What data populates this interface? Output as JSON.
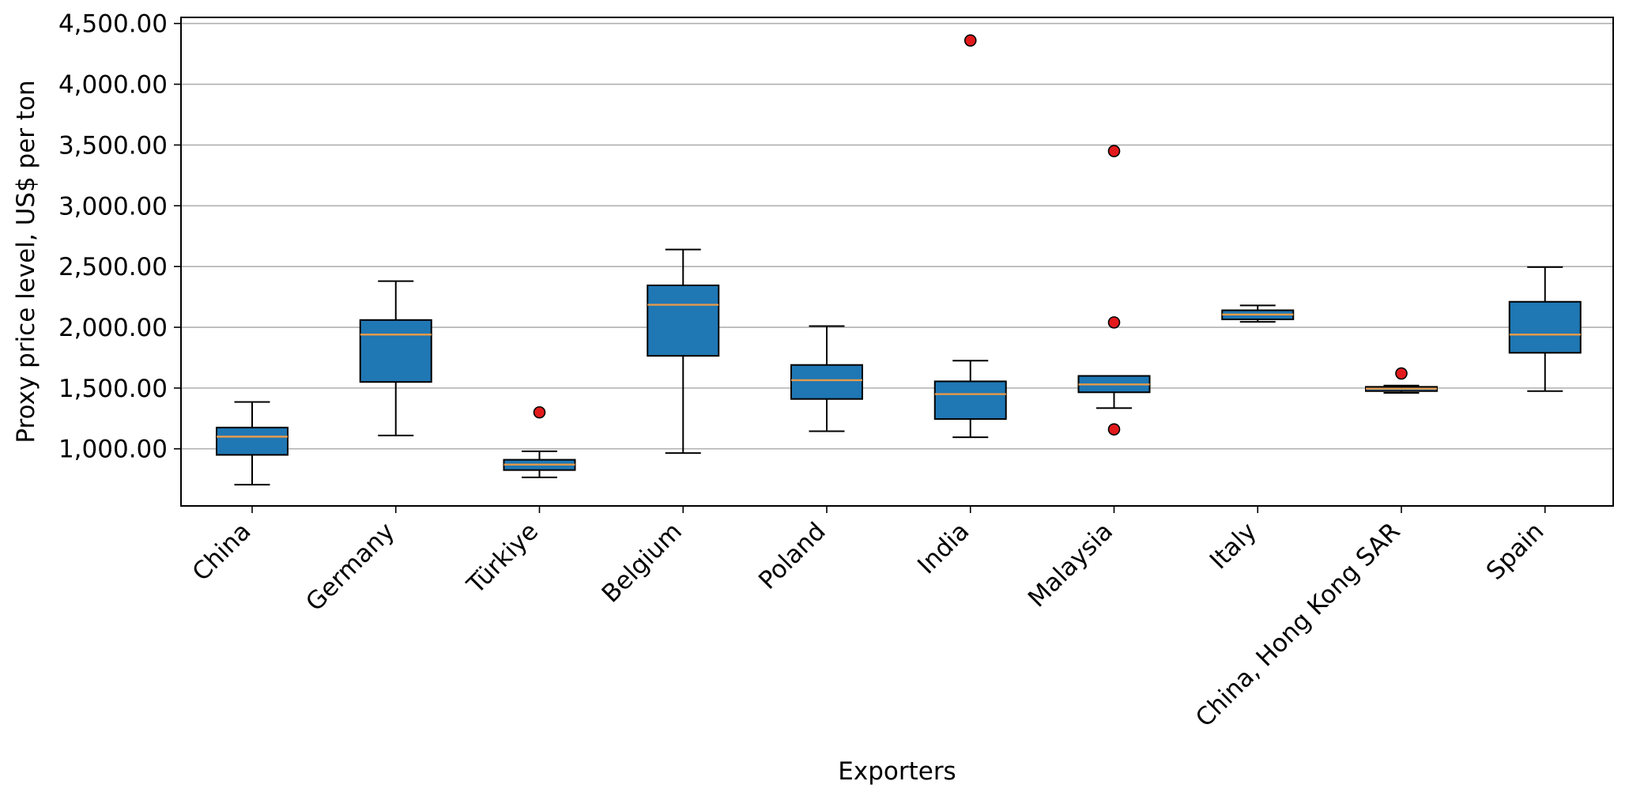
{
  "chart_data": {
    "type": "boxplot",
    "xlabel": "Exporters",
    "ylabel": "Proxy price level, US$ per ton",
    "ylim": [
      530,
      4550
    ],
    "yticks": [
      1000,
      1500,
      2000,
      2500,
      3000,
      3500,
      4000,
      4500
    ],
    "ytick_labels": [
      "1,000.00",
      "1,500.00",
      "2,000.00",
      "2,500.00",
      "3,000.00",
      "3,500.00",
      "4,000.00",
      "4,500.00"
    ],
    "grid": "horizontal",
    "box_color": "#1f77b4",
    "median_color": "#e69a4a",
    "outlier_color": "#e31a1c",
    "categories": [
      "China",
      "Germany",
      "Türkiye",
      "Belgium",
      "Poland",
      "India",
      "Malaysia",
      "Italy",
      "China, Hong Kong SAR",
      "Spain"
    ],
    "boxes": [
      {
        "category": "China",
        "whislo": 705,
        "q1": 950,
        "med": 1100,
        "q3": 1175,
        "whishi": 1385,
        "fliers": []
      },
      {
        "category": "Germany",
        "whislo": 1110,
        "q1": 1550,
        "med": 1940,
        "q3": 2060,
        "whishi": 2380,
        "fliers": []
      },
      {
        "category": "Türkiye",
        "whislo": 765,
        "q1": 825,
        "med": 870,
        "q3": 910,
        "whishi": 980,
        "fliers": [
          1300
        ]
      },
      {
        "category": "Belgium",
        "whislo": 965,
        "q1": 1765,
        "med": 2185,
        "q3": 2345,
        "whishi": 2640,
        "fliers": []
      },
      {
        "category": "Poland",
        "whislo": 1145,
        "q1": 1410,
        "med": 1565,
        "q3": 1690,
        "whishi": 2010,
        "fliers": []
      },
      {
        "category": "India",
        "whislo": 1095,
        "q1": 1245,
        "med": 1450,
        "q3": 1555,
        "whishi": 1725,
        "fliers": [
          4360
        ]
      },
      {
        "category": "Malaysia",
        "whislo": 1335,
        "q1": 1465,
        "med": 1530,
        "q3": 1600,
        "whishi": 1600,
        "fliers": [
          3450,
          2040,
          1160
        ]
      },
      {
        "category": "Italy",
        "whislo": 2045,
        "q1": 2065,
        "med": 2105,
        "q3": 2140,
        "whishi": 2180,
        "fliers": []
      },
      {
        "category": "China, Hong Kong SAR",
        "whislo": 1460,
        "q1": 1475,
        "med": 1495,
        "q3": 1510,
        "whishi": 1520,
        "fliers": [
          1620
        ]
      },
      {
        "category": "Spain",
        "whislo": 1475,
        "q1": 1790,
        "med": 1940,
        "q3": 2210,
        "whishi": 2495,
        "fliers": []
      }
    ]
  }
}
